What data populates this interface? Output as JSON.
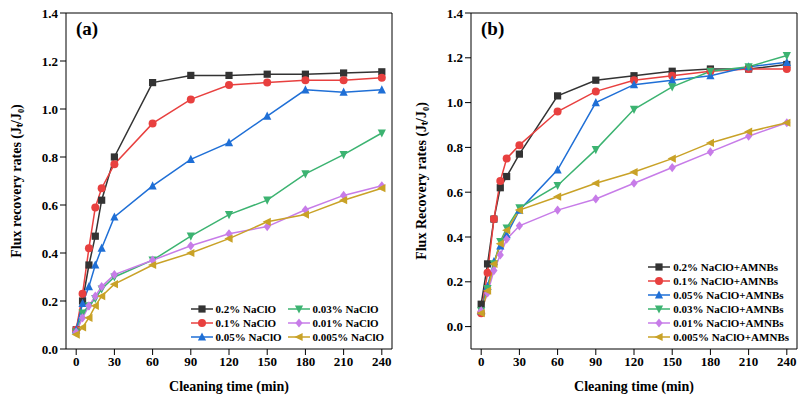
{
  "chart_data": [
    {
      "type": "line",
      "title": "(a)",
      "x_label": "Cleaning time (min)",
      "y_label": "Flux recovery rates (Jₜ/J₀)",
      "x": [
        0,
        5,
        10,
        15,
        20,
        30,
        60,
        90,
        120,
        150,
        180,
        210,
        240
      ],
      "xlim": [
        -8,
        248
      ],
      "xticks": [
        0,
        30,
        60,
        90,
        120,
        150,
        180,
        210,
        240
      ],
      "ylim": [
        0,
        1.4
      ],
      "yticks": [
        {
          "value": 0,
          "label": "0.0"
        },
        {
          "value": 0.2,
          "label": "0.2"
        },
        {
          "value": 0.4,
          "label": "0.4"
        },
        {
          "value": 0.6,
          "label": "0.6"
        },
        {
          "value": 0.8,
          "label": "0.8"
        },
        {
          "value": 1.0,
          "label": "1.0"
        },
        {
          "value": 1.2,
          "label": "1.2"
        },
        {
          "value": 1.4,
          "label": "1.4"
        }
      ],
      "legend": "lower right",
      "series": [
        {
          "name": "0.2% NaClO",
          "color": "#333333",
          "marker": "square",
          "values": [
            0.08,
            0.2,
            0.35,
            0.47,
            0.62,
            0.8,
            1.11,
            1.14,
            1.14,
            1.145,
            1.145,
            1.15,
            1.155
          ]
        },
        {
          "name": "0.1% NaClO",
          "color": "#e8403f",
          "marker": "circle",
          "values": [
            0.08,
            0.23,
            0.42,
            0.59,
            0.67,
            0.77,
            0.94,
            1.04,
            1.1,
            1.11,
            1.12,
            1.12,
            1.13
          ]
        },
        {
          "name": "0.05% NaClO",
          "color": "#1f6fd6",
          "marker": "triangle",
          "values": [
            0.08,
            0.19,
            0.26,
            0.35,
            0.42,
            0.55,
            0.68,
            0.79,
            0.86,
            0.97,
            1.08,
            1.07,
            1.08
          ]
        },
        {
          "name": "0.03% NaClO",
          "color": "#3cb371",
          "marker": "triangle-down",
          "values": [
            0.07,
            0.15,
            0.18,
            0.21,
            0.25,
            0.3,
            0.37,
            0.47,
            0.56,
            0.62,
            0.73,
            0.81,
            0.9
          ]
        },
        {
          "name": "0.01% NaClO",
          "color": "#c77ce8",
          "marker": "diamond",
          "values": [
            0.07,
            0.13,
            0.18,
            0.22,
            0.26,
            0.31,
            0.37,
            0.43,
            0.48,
            0.51,
            0.58,
            0.64,
            0.68
          ]
        },
        {
          "name": "0.005% NaClO",
          "color": "#c9a227",
          "marker": "triangle-left",
          "values": [
            0.06,
            0.09,
            0.13,
            0.18,
            0.22,
            0.27,
            0.35,
            0.4,
            0.46,
            0.53,
            0.56,
            0.62,
            0.67
          ]
        }
      ]
    },
    {
      "type": "line",
      "title": "(b)",
      "x_label": "Cleaning time (min)",
      "y_label": "Flux Recovery rates (Jₜ/J₀)",
      "x": [
        0,
        5,
        10,
        15,
        20,
        30,
        60,
        90,
        120,
        150,
        180,
        210,
        240
      ],
      "xlim": [
        -8,
        248
      ],
      "xticks": [
        0,
        30,
        60,
        90,
        120,
        150,
        180,
        210,
        240
      ],
      "ylim": [
        -0.1,
        1.4
      ],
      "yticks": [
        {
          "value": 0,
          "label": "0.0"
        },
        {
          "value": 0.2,
          "label": "0.2"
        },
        {
          "value": 0.4,
          "label": "0.4"
        },
        {
          "value": 0.6,
          "label": "0.6"
        },
        {
          "value": 0.8,
          "label": "0.8"
        },
        {
          "value": 1.0,
          "label": "1.0"
        },
        {
          "value": 1.2,
          "label": "1.2"
        },
        {
          "value": 1.4,
          "label": "1.4"
        }
      ],
      "legend": "lower right",
      "series": [
        {
          "name": "0.2% NaClO+AMNBs",
          "color": "#333333",
          "marker": "square",
          "values": [
            0.1,
            0.28,
            0.48,
            0.62,
            0.67,
            0.77,
            1.03,
            1.1,
            1.12,
            1.14,
            1.15,
            1.15,
            1.17
          ]
        },
        {
          "name": "0.1% NaClO+AMNBs",
          "color": "#e8403f",
          "marker": "circle",
          "values": [
            0.06,
            0.24,
            0.48,
            0.65,
            0.75,
            0.81,
            0.96,
            1.05,
            1.1,
            1.12,
            1.14,
            1.15,
            1.15
          ]
        },
        {
          "name": "0.05% NaClO+AMNBs",
          "color": "#1f6fd6",
          "marker": "triangle",
          "values": [
            0.07,
            0.18,
            0.29,
            0.36,
            0.41,
            0.52,
            0.7,
            1.0,
            1.08,
            1.1,
            1.12,
            1.16,
            1.18
          ]
        },
        {
          "name": "0.03% NaClO+AMNBs",
          "color": "#3cb371",
          "marker": "triangle-down",
          "values": [
            0.07,
            0.17,
            0.28,
            0.38,
            0.44,
            0.53,
            0.63,
            0.79,
            0.97,
            1.07,
            1.14,
            1.16,
            1.21
          ]
        },
        {
          "name": "0.01% NaClO+AMNBs",
          "color": "#c77ce8",
          "marker": "diamond",
          "values": [
            0.07,
            0.15,
            0.25,
            0.32,
            0.39,
            0.45,
            0.52,
            0.57,
            0.64,
            0.71,
            0.78,
            0.85,
            0.91
          ]
        },
        {
          "name": "0.005% NaClO+AMNBs",
          "color": "#c9a227",
          "marker": "triangle-left",
          "values": [
            0.06,
            0.16,
            0.28,
            0.37,
            0.43,
            0.52,
            0.58,
            0.64,
            0.69,
            0.75,
            0.82,
            0.87,
            0.91
          ]
        }
      ]
    }
  ]
}
